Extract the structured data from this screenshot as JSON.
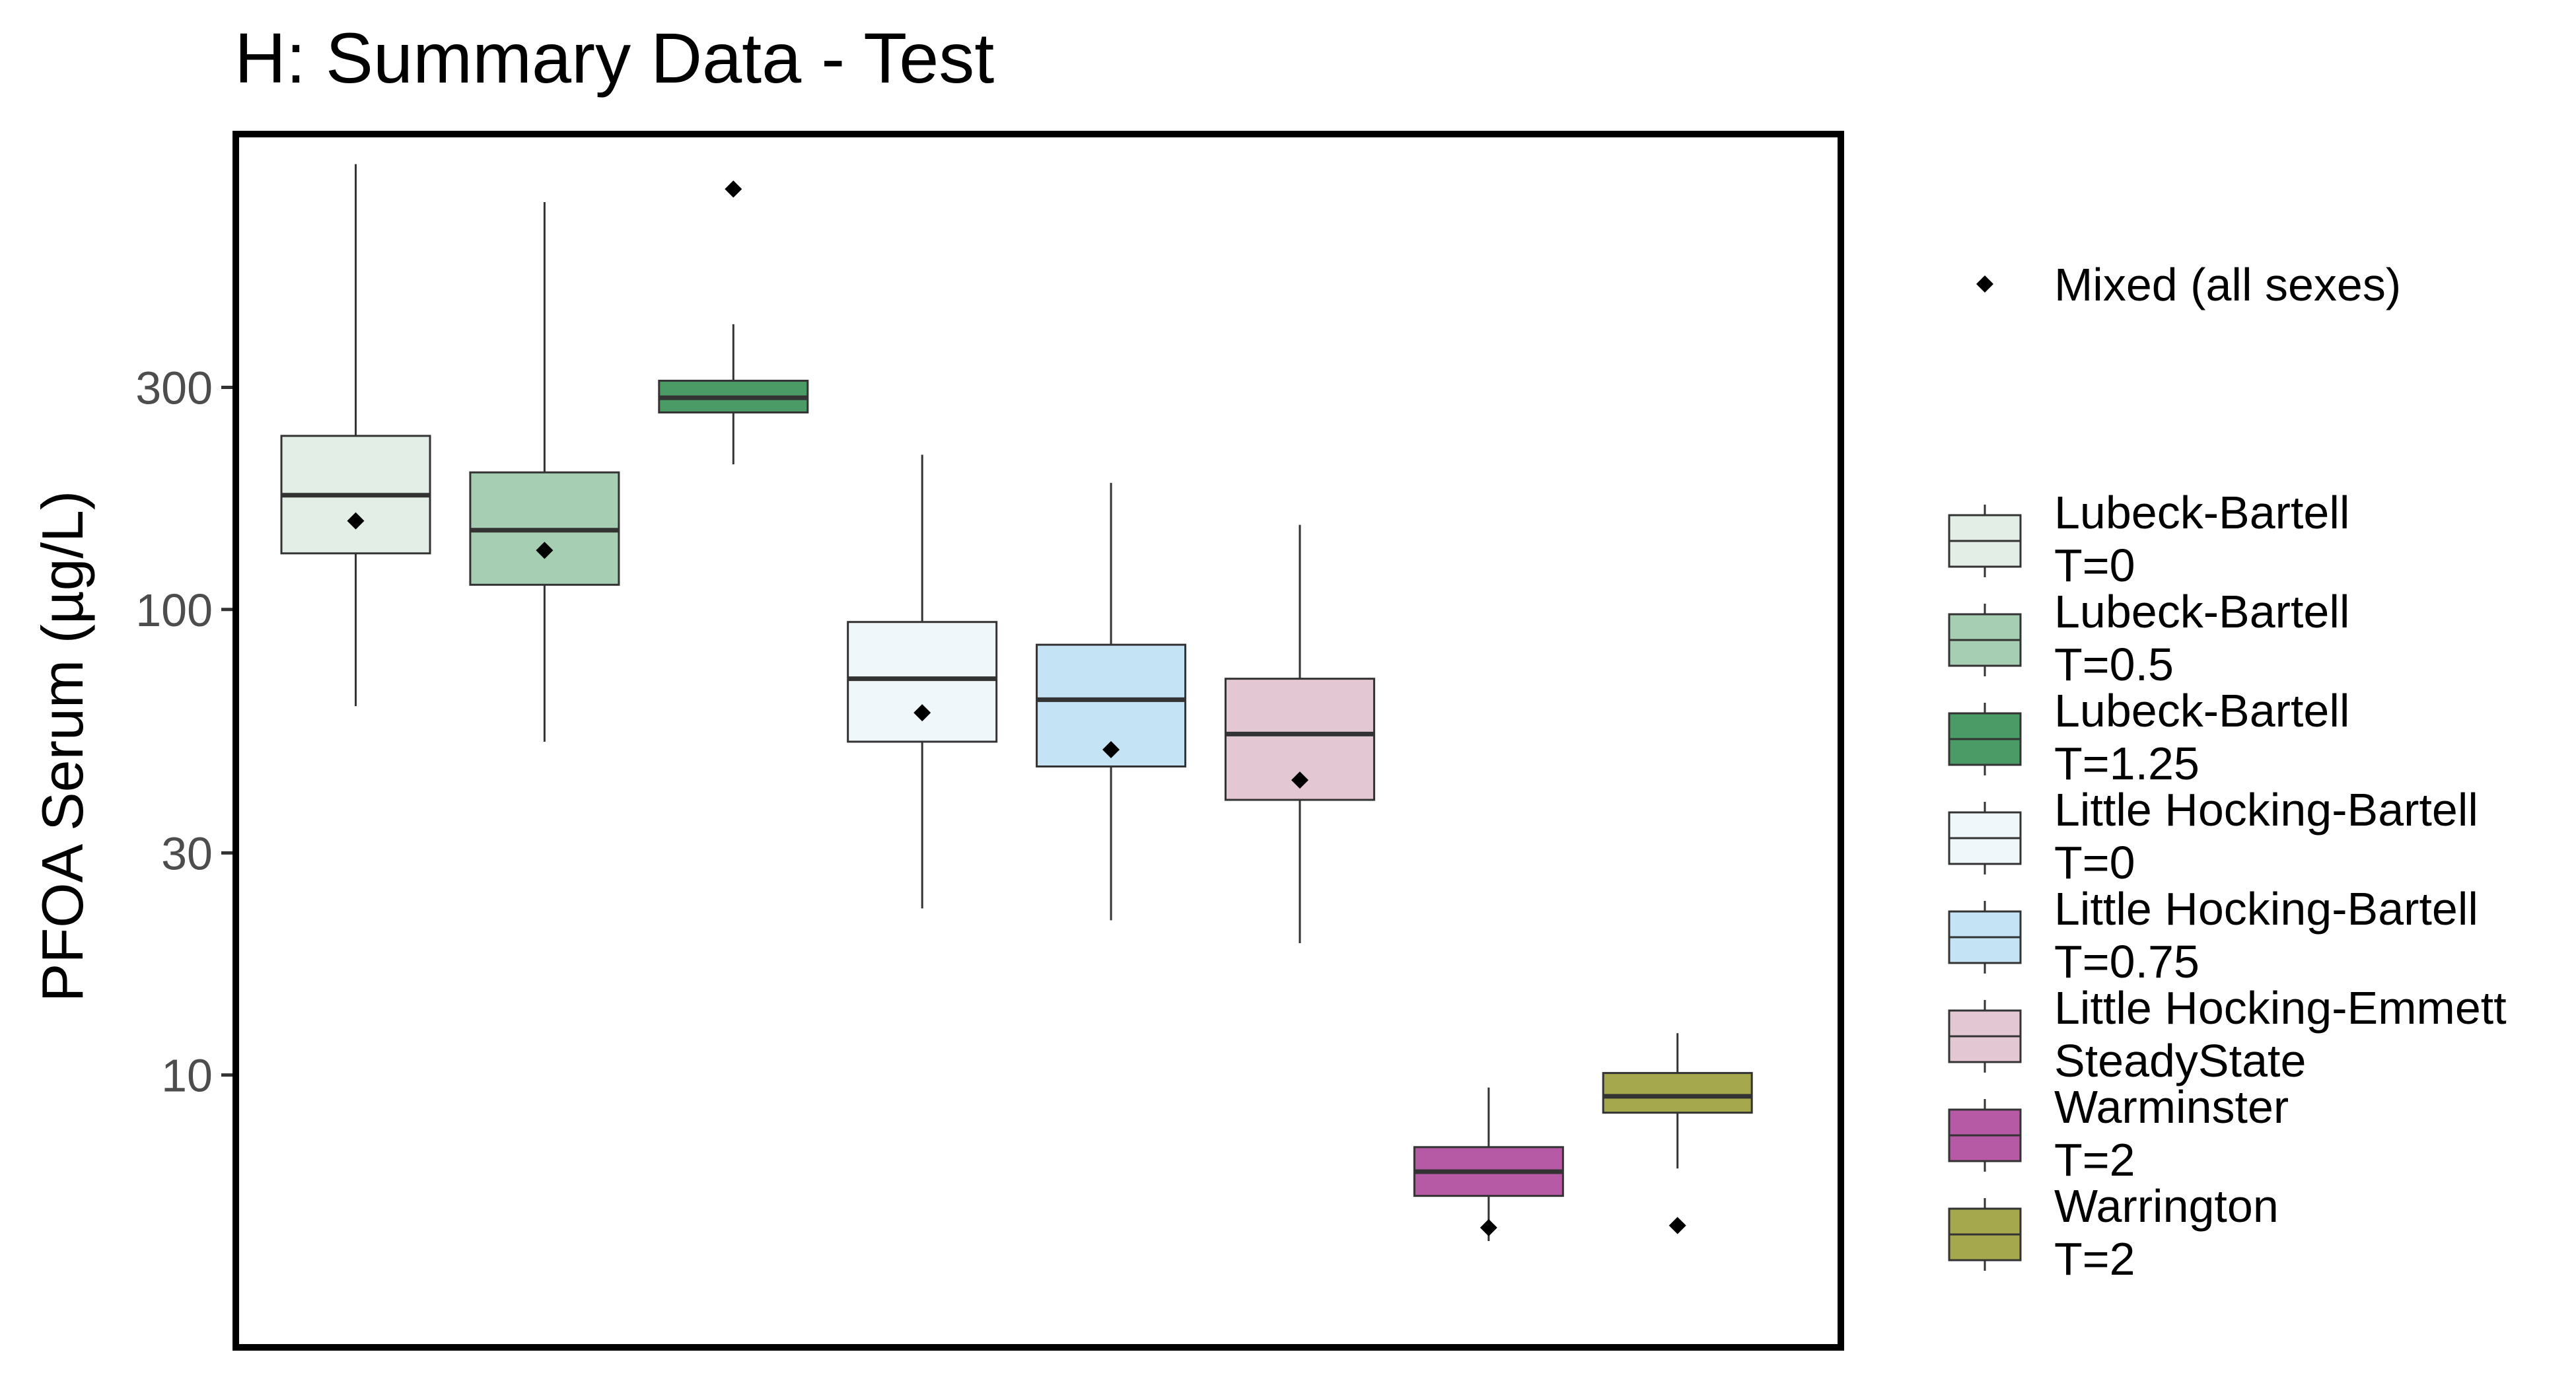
{
  "chart_data": {
    "type": "box",
    "title": "H: Summary Data - Test",
    "ylabel": "PFOA Serum (µg/L)",
    "xlabel": "",
    "y_scale": "log10",
    "ylim": [
      2.6,
      1050
    ],
    "y_ticks": [
      {
        "value": 10,
        "label": "10"
      },
      {
        "value": 30,
        "label": "30"
      },
      {
        "value": 100,
        "label": "100"
      },
      {
        "value": 300,
        "label": "300"
      }
    ],
    "grid": false,
    "legend_position": "right",
    "point_legend": {
      "symbol": "diamond",
      "label": "Mixed (all sexes)"
    },
    "series": [
      {
        "name_lines": [
          "Lubeck-Bartell",
          "T=0"
        ],
        "color": "#e3eee6",
        "whisker_low": 62,
        "q1": 132,
        "median": 176,
        "q3": 236,
        "whisker_high": 905,
        "mixed": 155
      },
      {
        "name_lines": [
          "Lubeck-Bartell",
          "T=0.5"
        ],
        "color": "#a6ceb3",
        "whisker_low": 52,
        "q1": 113,
        "median": 148,
        "q3": 197,
        "whisker_high": 750,
        "mixed": 134
      },
      {
        "name_lines": [
          "Lubeck-Bartell",
          "T=1.25"
        ],
        "color": "#4a9b66",
        "whisker_low": 205,
        "q1": 265,
        "median": 285,
        "q3": 310,
        "whisker_high": 410,
        "mixed": 800
      },
      {
        "name_lines": [
          "Little Hocking-Bartell",
          "T=0"
        ],
        "color": "#f0f7fa",
        "whisker_low": 22.8,
        "q1": 52,
        "median": 71,
        "q3": 94,
        "whisker_high": 215,
        "mixed": 60
      },
      {
        "name_lines": [
          "Little Hocking-Bartell",
          "T=0.75"
        ],
        "color": "#c4e3f4",
        "whisker_low": 21.5,
        "q1": 46,
        "median": 64,
        "q3": 84,
        "whisker_high": 187,
        "mixed": 50
      },
      {
        "name_lines": [
          "Little Hocking-Emmett",
          "SteadyState"
        ],
        "color": "#e3c8d4",
        "whisker_low": 19.2,
        "q1": 39,
        "median": 54,
        "q3": 71,
        "whisker_high": 152,
        "mixed": 43
      },
      {
        "name_lines": [
          "Warminster",
          "T=2"
        ],
        "color": "#b75aa6",
        "whisker_low": 4.4,
        "q1": 5.5,
        "median": 6.2,
        "q3": 7.0,
        "whisker_high": 9.4,
        "mixed": 4.7
      },
      {
        "name_lines": [
          "Warrington",
          "T=2"
        ],
        "color": "#a6a84e",
        "whisker_low": 6.3,
        "q1": 8.3,
        "median": 9.0,
        "q3": 10.1,
        "whisker_high": 12.3,
        "mixed": 4.75
      }
    ]
  }
}
